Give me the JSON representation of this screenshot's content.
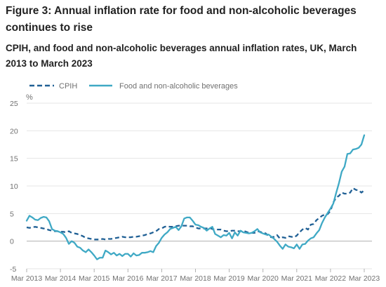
{
  "figure": {
    "title": "Figure 3: Annual inflation rate for food and non-alcoholic beverages continues to rise",
    "subtitle": "CPIH, and food and non-alcoholic beverages annual inflation rates, UK, March 2013 to March 2023"
  },
  "chart_data": {
    "type": "line",
    "ylabel": "%",
    "xlabel": "",
    "ylim": [
      -5,
      25
    ],
    "yticks": [
      -5,
      0,
      5,
      10,
      15,
      20,
      25
    ],
    "xticks": [
      "Mar 2013",
      "Mar 2014",
      "Mar 2015",
      "Mar 2016",
      "Mar 2017",
      "Mar 2018",
      "Mar 2019",
      "Mar 2020",
      "Mar 2021",
      "Mar 2022",
      "Mar 2023"
    ],
    "x_start": "Mar 2013",
    "x_end": "Mar 2023",
    "grid": "horizontal",
    "legend_position": "top-left",
    "series": [
      {
        "name": "CPIH",
        "style": "dashed",
        "color": "#206095",
        "values": [
          2.5,
          2.4,
          2.5,
          2.6,
          2.5,
          2.4,
          2.3,
          2.2,
          2.0,
          1.9,
          1.8,
          1.8,
          1.7,
          1.7,
          1.6,
          1.8,
          1.5,
          1.4,
          1.3,
          1.1,
          0.9,
          0.6,
          0.5,
          0.4,
          0.3,
          0.3,
          0.3,
          0.4,
          0.3,
          0.4,
          0.4,
          0.5,
          0.6,
          0.7,
          0.8,
          0.7,
          0.7,
          0.7,
          0.8,
          0.8,
          0.9,
          1.0,
          1.1,
          1.3,
          1.4,
          1.6,
          1.8,
          2.2,
          2.3,
          2.6,
          2.7,
          2.6,
          2.6,
          2.7,
          2.8,
          2.8,
          2.8,
          2.8,
          2.7,
          2.7,
          2.5,
          2.3,
          2.3,
          2.3,
          2.3,
          2.4,
          2.2,
          2.1,
          2.1,
          2.1,
          1.9,
          1.8,
          1.8,
          1.9,
          1.9,
          1.8,
          1.8,
          1.9,
          1.7,
          1.5,
          1.5,
          1.5,
          1.8,
          1.7,
          1.5,
          1.4,
          0.9,
          0.7,
          0.8,
          1.1,
          0.5,
          0.7,
          0.6,
          0.9,
          0.8,
          0.7,
          1.0,
          1.6,
          2.1,
          2.4,
          2.1,
          3.0,
          3.1,
          3.8,
          4.2,
          4.6,
          4.8,
          4.9,
          5.5,
          7.0,
          7.9,
          8.2,
          8.8,
          8.6,
          8.6,
          8.8,
          9.6,
          9.3,
          9.2,
          8.8,
          9.2
        ]
      },
      {
        "name": "Food and non-alcoholic beverages",
        "style": "solid",
        "color": "#3fa9c5",
        "values": [
          3.7,
          4.6,
          4.3,
          3.9,
          3.8,
          4.2,
          4.4,
          4.3,
          3.6,
          2.2,
          1.9,
          1.8,
          1.6,
          1.3,
          0.6,
          -0.5,
          0.0,
          -0.3,
          -1.0,
          -1.2,
          -1.7,
          -2.0,
          -1.5,
          -2.0,
          -2.6,
          -3.3,
          -3.0,
          -3.0,
          -1.7,
          -2.0,
          -2.4,
          -2.1,
          -2.6,
          -2.3,
          -2.7,
          -2.3,
          -2.3,
          -2.8,
          -2.2,
          -2.6,
          -2.5,
          -2.1,
          -2.1,
          -2.0,
          -1.8,
          -2.0,
          -0.9,
          -0.3,
          0.6,
          1.2,
          1.6,
          2.2,
          2.4,
          2.6,
          2.0,
          2.7,
          4.1,
          4.3,
          4.3,
          3.7,
          3.0,
          2.9,
          2.6,
          2.4,
          1.9,
          2.3,
          2.6,
          1.3,
          1.0,
          0.7,
          1.1,
          1.0,
          1.5,
          0.5,
          1.6,
          1.0,
          1.9,
          1.6,
          1.5,
          1.4,
          1.5,
          1.8,
          2.2,
          1.6,
          1.4,
          1.2,
          1.2,
          0.8,
          0.4,
          -0.1,
          -0.8,
          -1.4,
          -0.6,
          -1.0,
          -1.1,
          -1.3,
          -0.6,
          -1.4,
          -0.6,
          -0.5,
          0.1,
          0.5,
          0.7,
          1.4,
          2.0,
          3.3,
          4.3,
          5.1,
          5.9,
          6.8,
          8.7,
          10.5,
          12.6,
          13.5,
          15.8,
          15.9,
          16.6,
          16.7,
          16.9,
          17.5,
          19.2
        ]
      }
    ]
  }
}
